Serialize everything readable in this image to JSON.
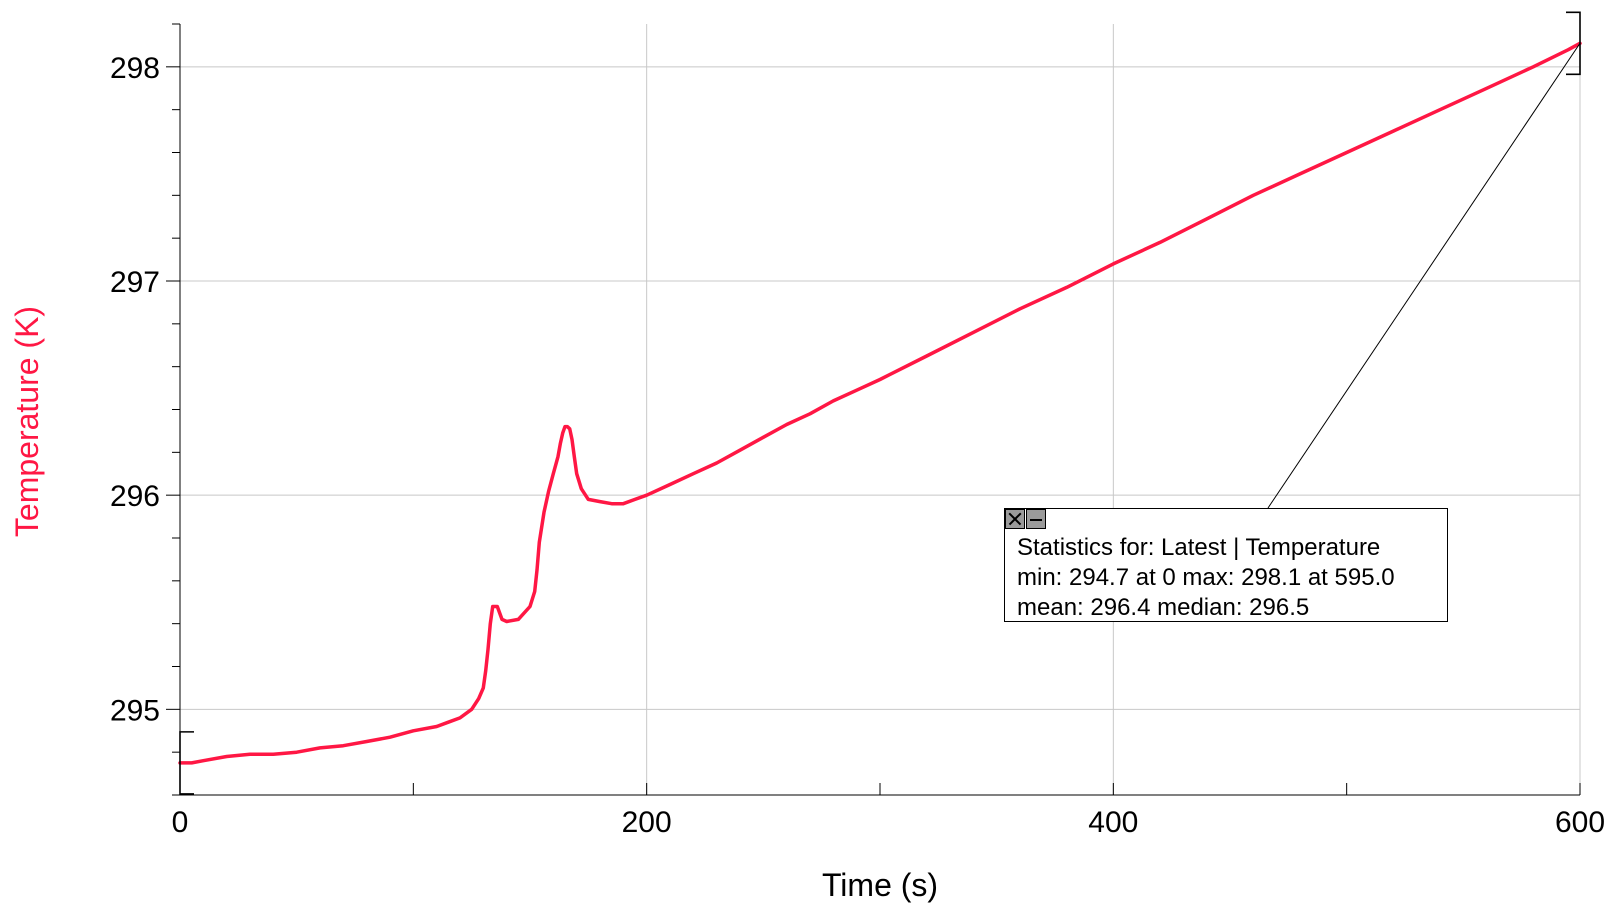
{
  "chart_data": {
    "type": "line",
    "title": "",
    "xlabel": "Time (s)",
    "ylabel": "Temperature (K)",
    "xlim": [
      0,
      600
    ],
    "ylim": [
      294.6,
      298.2
    ],
    "x_ticks": [
      0,
      200,
      400,
      600
    ],
    "x_minor_ticks": [
      100,
      300,
      500
    ],
    "y_ticks": [
      295,
      296,
      297,
      298
    ],
    "grid": true,
    "legend": "none",
    "series": [
      {
        "color": "#ff1744",
        "points": [
          [
            0,
            294.75
          ],
          [
            5,
            294.75
          ],
          [
            10,
            294.76
          ],
          [
            20,
            294.78
          ],
          [
            30,
            294.79
          ],
          [
            40,
            294.79
          ],
          [
            50,
            294.8
          ],
          [
            60,
            294.82
          ],
          [
            70,
            294.83
          ],
          [
            80,
            294.85
          ],
          [
            90,
            294.87
          ],
          [
            100,
            294.9
          ],
          [
            110,
            294.92
          ],
          [
            115,
            294.94
          ],
          [
            120,
            294.96
          ],
          [
            125,
            295.0
          ],
          [
            128,
            295.05
          ],
          [
            130,
            295.1
          ],
          [
            131,
            295.18
          ],
          [
            132,
            295.28
          ],
          [
            133,
            295.4
          ],
          [
            134,
            295.48
          ],
          [
            136,
            295.48
          ],
          [
            138,
            295.42
          ],
          [
            140,
            295.41
          ],
          [
            145,
            295.42
          ],
          [
            150,
            295.48
          ],
          [
            152,
            295.55
          ],
          [
            153,
            295.65
          ],
          [
            154,
            295.78
          ],
          [
            156,
            295.92
          ],
          [
            158,
            296.02
          ],
          [
            160,
            296.1
          ],
          [
            162,
            296.18
          ],
          [
            163,
            296.24
          ],
          [
            164,
            296.29
          ],
          [
            165,
            296.32
          ],
          [
            166,
            296.32
          ],
          [
            167,
            296.31
          ],
          [
            168,
            296.26
          ],
          [
            169,
            296.18
          ],
          [
            170,
            296.1
          ],
          [
            172,
            296.03
          ],
          [
            175,
            295.98
          ],
          [
            180,
            295.97
          ],
          [
            185,
            295.96
          ],
          [
            190,
            295.96
          ],
          [
            195,
            295.98
          ],
          [
            200,
            296.0
          ],
          [
            210,
            296.05
          ],
          [
            220,
            296.1
          ],
          [
            230,
            296.15
          ],
          [
            240,
            296.21
          ],
          [
            250,
            296.27
          ],
          [
            260,
            296.33
          ],
          [
            270,
            296.38
          ],
          [
            280,
            296.44
          ],
          [
            290,
            296.49
          ],
          [
            300,
            296.54
          ],
          [
            320,
            296.65
          ],
          [
            340,
            296.76
          ],
          [
            360,
            296.87
          ],
          [
            380,
            296.97
          ],
          [
            400,
            297.08
          ],
          [
            420,
            297.18
          ],
          [
            440,
            297.29
          ],
          [
            460,
            297.4
          ],
          [
            480,
            297.5
          ],
          [
            500,
            297.6
          ],
          [
            520,
            297.7
          ],
          [
            540,
            297.8
          ],
          [
            560,
            297.9
          ],
          [
            580,
            298.0
          ],
          [
            595,
            298.08
          ],
          [
            600,
            298.11
          ]
        ]
      }
    ],
    "stats": {
      "line1": "Statistics for: Latest | Temperature",
      "line2": "min: 294.7 at 0 max: 298.1 at 595.0",
      "line3": "mean: 296.4 median: 296.5"
    },
    "ylabel_color": "#ff1744"
  }
}
